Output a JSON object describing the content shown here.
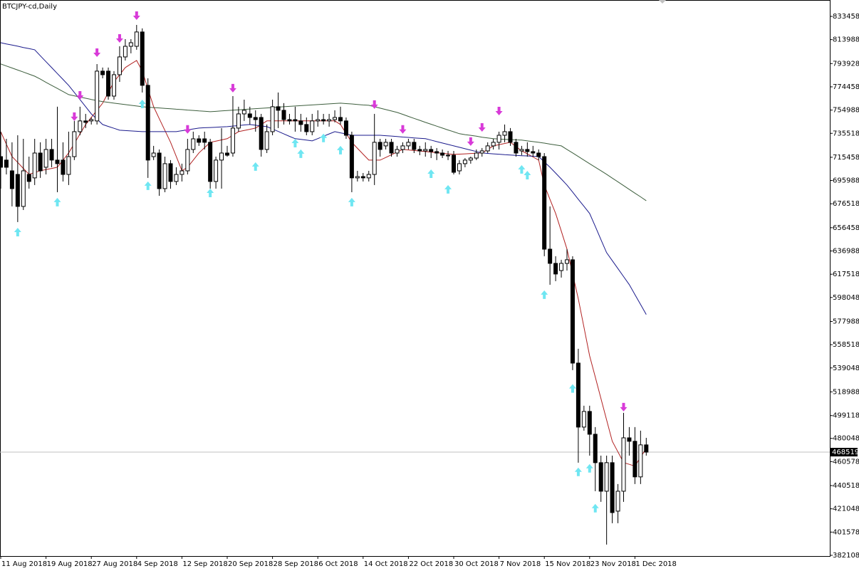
{
  "chart_data": {
    "type": "candlestick",
    "title": "BTCJPY-cd,Daily",
    "categories": [
      "11 Aug 2018",
      null,
      null,
      null,
      null,
      null,
      null,
      null,
      "19 Aug 2018",
      null,
      null,
      null,
      null,
      null,
      null,
      null,
      "27 Aug 2018",
      null,
      null,
      null,
      null,
      null,
      null,
      null,
      "4 Sep 2018",
      null,
      null,
      null,
      null,
      null,
      null,
      null,
      "12 Sep 2018",
      null,
      null,
      null,
      null,
      null,
      null,
      null,
      "20 Sep 2018",
      null,
      null,
      null,
      null,
      null,
      null,
      null,
      "28 Sep 2018",
      null,
      null,
      null,
      null,
      null,
      null,
      null,
      "6 Oct 2018",
      null,
      null,
      null,
      null,
      null,
      null,
      null,
      "14 Oct 2018",
      null,
      null,
      null,
      null,
      null,
      null,
      null,
      "22 Oct 2018",
      null,
      null,
      null,
      null,
      null,
      null,
      null,
      "30 Oct 2018",
      null,
      null,
      null,
      null,
      null,
      null,
      null,
      "7 Nov 2018",
      null,
      null,
      null,
      null,
      null,
      null,
      null,
      "15 Nov 2018",
      null,
      null,
      null,
      null,
      null,
      null,
      null,
      "23 Nov 2018",
      null,
      null,
      null,
      null,
      null,
      null,
      null,
      "1 Dec 2018",
      null,
      null
    ],
    "open": [
      716000,
      713100,
      704100,
      701100,
      674300,
      701100,
      698200,
      719000,
      707100,
      722000,
      713100,
      713100,
      701100,
      716000,
      736900,
      745900,
      745900,
      745900,
      787600,
      787600,
      766700,
      784600,
      799500,
      808400,
      808400,
      820400,
      775700,
      716000,
      719000,
      689200,
      710100,
      695200,
      701100,
      704100,
      722000,
      730900,
      730900,
      728000,
      695200,
      713100,
      719000,
      719000,
      739900,
      751800,
      751800,
      748800,
      748800,
      722000,
      736900,
      757800,
      754800,
      747000,
      747000,
      745900,
      742900,
      736900,
      745900,
      747000,
      745900,
      747000,
      748800,
      745900,
      733900,
      698200,
      699300,
      698200,
      701100,
      728000,
      725000,
      728000,
      719000,
      722000,
      725000,
      728000,
      722000,
      720800,
      722000,
      720200,
      719000,
      717200,
      717200,
      704100,
      710100,
      713100,
      714800,
      719000,
      720800,
      725000,
      728000,
      733900,
      736900,
      728000,
      720800,
      722000,
      720200,
      719000,
      716000,
      638500,
      626600,
      620600,
      626600,
      629600,
      543100,
      489500,
      502600,
      483500,
      459700,
      435800,
      459700,
      419100,
      435800,
      480500,
      477600,
      447800,
      474600
    ],
    "high": [
      736900,
      730900,
      728000,
      733900,
      730900,
      716000,
      730900,
      728000,
      730900,
      730900,
      757800,
      728000,
      736900,
      745900,
      757800,
      751800,
      748800,
      793500,
      790600,
      790600,
      787600,
      808400,
      814400,
      814400,
      826300,
      823400,
      781600,
      725000,
      722000,
      716000,
      713100,
      707100,
      710100,
      730900,
      736900,
      733900,
      736900,
      730900,
      716000,
      739900,
      725000,
      766700,
      757800,
      763700,
      757800,
      754800,
      751800,
      742900,
      763700,
      769700,
      760800,
      751800,
      757800,
      751800,
      748800,
      751800,
      754800,
      751800,
      751800,
      754800,
      757800,
      748800,
      736900,
      704100,
      702300,
      704100,
      751800,
      730900,
      730900,
      730900,
      725000,
      728000,
      730900,
      730900,
      725000,
      728000,
      725000,
      723200,
      722000,
      720800,
      720800,
      713100,
      714800,
      716000,
      722000,
      723200,
      728000,
      730900,
      736900,
      742900,
      739900,
      730900,
      725000,
      728000,
      725000,
      722000,
      719000,
      674300,
      632600,
      629600,
      638500,
      632600,
      555100,
      507400,
      507400,
      489500,
      465600,
      465600,
      465600,
      441800,
      501400,
      489500,
      489500,
      486500,
      480500
    ],
    "low": [
      689200,
      701100,
      674300,
      661200,
      671300,
      689200,
      692200,
      698200,
      701100,
      707100,
      686200,
      695200,
      692200,
      713100,
      733900,
      739900,
      742900,
      742900,
      781600,
      763700,
      763700,
      778600,
      796500,
      802500,
      805500,
      769700,
      698200,
      713100,
      683200,
      686200,
      689200,
      692200,
      695200,
      701100,
      719000,
      725000,
      722000,
      689200,
      689200,
      689200,
      716000,
      716000,
      736900,
      745900,
      742900,
      736900,
      716000,
      719000,
      733900,
      739900,
      742900,
      742900,
      736900,
      736900,
      733900,
      733900,
      741100,
      742900,
      741100,
      744700,
      742900,
      730900,
      686200,
      695200,
      695200,
      695200,
      692200,
      716000,
      722000,
      716000,
      716000,
      719000,
      722000,
      719000,
      717200,
      716000,
      714800,
      713100,
      714800,
      713100,
      701100,
      701100,
      707100,
      710100,
      713100,
      716000,
      719000,
      722000,
      722000,
      728000,
      725000,
      716000,
      717200,
      716000,
      716000,
      713100,
      632600,
      608700,
      611700,
      614700,
      620600,
      537200,
      459700,
      486500,
      465600,
      435800,
      426900,
      391100,
      409000,
      409000,
      426900,
      465600,
      441800,
      441800,
      465600
    ],
    "close": [
      707100,
      707100,
      689200,
      674300,
      704100,
      695200,
      719000,
      704100,
      722000,
      713100,
      710100,
      701100,
      716000,
      736900,
      745900,
      744700,
      747000,
      787600,
      784600,
      766700,
      784600,
      799500,
      808400,
      811400,
      820400,
      775700,
      713100,
      719000,
      689200,
      710100,
      695200,
      701100,
      704100,
      722000,
      730900,
      728000,
      728000,
      695200,
      713100,
      719000,
      717200,
      739900,
      751800,
      754800,
      748800,
      747000,
      722000,
      736900,
      757800,
      754800,
      747000,
      745900,
      745900,
      742900,
      736900,
      745900,
      747000,
      745900,
      747000,
      748800,
      745900,
      733900,
      698200,
      699300,
      698200,
      701100,
      728000,
      722000,
      728000,
      719000,
      722000,
      725000,
      728000,
      722000,
      720800,
      722000,
      720200,
      719000,
      717200,
      717200,
      702900,
      710100,
      713100,
      714800,
      719000,
      720800,
      725000,
      728000,
      733900,
      736900,
      728000,
      719000,
      722000,
      720200,
      719000,
      716000,
      638500,
      626600,
      617700,
      626600,
      629600,
      543100,
      489500,
      502600,
      483500,
      459700,
      435800,
      459700,
      417900,
      435800,
      480500,
      477600,
      447800,
      474600,
      468519
    ],
    "bull_color": "#ffffff",
    "bear_color": "#000000",
    "moving_averages": [
      {
        "color": "#b22222",
        "values": [
          736900,
          726500,
          716100,
          711100,
          706100,
          701200,
          702700,
          704200,
          705200,
          706100,
          707100,
          713100,
          719100,
          727000,
          735000,
          742900,
          748900,
          754800,
          760800,
          769700,
          778700,
          784600,
          790600,
          793600,
          796500,
          787600,
          772700,
          757800,
          747800,
          737900,
          728000,
          716100,
          704200,
          707100,
          713100,
          719100,
          723500,
          728000,
          729000,
          730000,
          731000,
          733900,
          736900,
          737900,
          738900,
          739900,
          742900,
          745900,
          745900,
          745900,
          745900,
          745900,
          745900,
          745900,
          745900,
          745900,
          745900,
          745900,
          745900,
          745900,
          742900,
          735500,
          728000,
          722900,
          718000,
          713100,
          713100,
          713100,
          715300,
          717600,
          719800,
          722000,
          721600,
          721100,
          720700,
          720200,
          719800,
          719300,
          718800,
          718300,
          717900,
          718100,
          718300,
          718600,
          718800,
          719100,
          722000,
          725000,
          726000,
          727000,
          728000,
          724400,
          720800,
          718300,
          715700,
          713100,
          692200,
          680300,
          668400,
          653500,
          638600,
          617700,
          596900,
          573000,
          549200,
          531300,
          513400,
          495600,
          477700,
          468700,
          459800,
          458300,
          456800,
          464300,
          471700
        ]
      },
      {
        "color": "#1a1a8c",
        "values": [
          811400,
          810400,
          809500,
          808500,
          807400,
          806500,
          805500,
          800500,
          795500,
          790600,
          785600,
          780600,
          775700,
          769700,
          763800,
          757800,
          751800,
          747400,
          742900,
          741300,
          739700,
          738100,
          737800,
          737500,
          737200,
          736900,
          736900,
          736900,
          736900,
          736900,
          736900,
          736900,
          737700,
          738400,
          739200,
          739900,
          740200,
          740400,
          740600,
          740900,
          741100,
          741600,
          742000,
          742500,
          742900,
          742300,
          741700,
          741100,
          739100,
          737100,
          735000,
          733000,
          731000,
          730400,
          729800,
          729200,
          731100,
          733100,
          735000,
          736900,
          735900,
          735000,
          733900,
          733900,
          733900,
          733900,
          733900,
          733900,
          733500,
          733200,
          732800,
          732400,
          732100,
          731700,
          731300,
          731000,
          729800,
          728600,
          727400,
          726200,
          725000,
          723800,
          722600,
          721400,
          720300,
          719100,
          718700,
          718300,
          718000,
          717600,
          717300,
          717000,
          716800,
          716600,
          716300,
          716100,
          711600,
          707100,
          702200,
          697200,
          692200,
          686300,
          680300,
          674400,
          668400,
          657500,
          646500,
          635600,
          628900,
          622200,
          615500,
          608800,
          600500,
          592100,
          583800
        ]
      },
      {
        "color": "#3d5e3d",
        "values": [
          793600,
          791900,
          790200,
          788500,
          786800,
          785100,
          783400,
          780900,
          778200,
          775700,
          773100,
          770500,
          767900,
          766900,
          765900,
          764900,
          763900,
          763000,
          762000,
          761400,
          760800,
          760200,
          759600,
          759000,
          758400,
          757800,
          757400,
          757100,
          756800,
          756400,
          756100,
          755700,
          755400,
          755000,
          754700,
          754300,
          754000,
          753600,
          753900,
          754300,
          754600,
          754900,
          755200,
          755500,
          755900,
          756200,
          756500,
          756800,
          757100,
          757500,
          757800,
          758100,
          758400,
          758700,
          759000,
          759300,
          759600,
          759900,
          760200,
          760500,
          760800,
          760400,
          760100,
          759700,
          759300,
          759000,
          757800,
          756600,
          755400,
          754200,
          753000,
          751400,
          749700,
          748000,
          746400,
          744700,
          743100,
          741500,
          739900,
          738300,
          736800,
          735200,
          734400,
          733800,
          733100,
          732300,
          731700,
          731000,
          730700,
          730500,
          730300,
          730000,
          729800,
          729200,
          728600,
          728000,
          727300,
          726500,
          725800,
          725000,
          722000,
          719100,
          716100,
          713100,
          710100,
          707100,
          704200,
          701200,
          698000,
          694900,
          691700,
          688500,
          685400,
          682300,
          679100
        ]
      }
    ],
    "up_arrows": {
      "color": "#6fe6f2",
      "values": [
        null,
        null,
        null,
        656400,
        null,
        null,
        null,
        null,
        null,
        null,
        681500,
        null,
        null,
        null,
        null,
        null,
        null,
        null,
        null,
        null,
        null,
        null,
        null,
        null,
        null,
        763700,
        695200,
        null,
        null,
        null,
        null,
        null,
        null,
        null,
        null,
        null,
        null,
        689200,
        null,
        null,
        null,
        null,
        null,
        null,
        null,
        711300,
        null,
        null,
        null,
        null,
        null,
        null,
        730900,
        722000,
        null,
        null,
        null,
        735200,
        null,
        null,
        725000,
        null,
        681500,
        null,
        null,
        null,
        null,
        null,
        null,
        null,
        null,
        null,
        null,
        null,
        null,
        null,
        705300,
        null,
        null,
        692200,
        null,
        null,
        null,
        null,
        null,
        null,
        null,
        null,
        null,
        null,
        null,
        null,
        708900,
        704100,
        null,
        null,
        604000,
        null,
        null,
        null,
        null,
        525400,
        455600,
        null,
        458600,
        425200,
        null,
        null,
        null,
        null,
        null,
        null,
        null,
        null,
        null
      ]
    },
    "down_arrows": {
      "color": "#d83ad8",
      "values": [
        null,
        null,
        null,
        null,
        null,
        null,
        null,
        null,
        null,
        null,
        null,
        null,
        null,
        745900,
        763700,
        null,
        null,
        799500,
        null,
        null,
        null,
        811400,
        null,
        null,
        830500,
        null,
        null,
        null,
        null,
        null,
        null,
        null,
        null,
        735200,
        null,
        null,
        null,
        null,
        null,
        null,
        null,
        769700,
        null,
        null,
        null,
        null,
        null,
        null,
        null,
        null,
        null,
        null,
        null,
        null,
        null,
        null,
        null,
        null,
        null,
        null,
        null,
        null,
        null,
        null,
        null,
        null,
        756000,
        null,
        null,
        null,
        null,
        735200,
        null,
        null,
        null,
        null,
        null,
        null,
        null,
        null,
        null,
        null,
        null,
        725000,
        null,
        736900,
        null,
        null,
        750600,
        null,
        null,
        null,
        null,
        null,
        null,
        null,
        null,
        null,
        null,
        null,
        null,
        null,
        null,
        null,
        null,
        null,
        null,
        null,
        null,
        null,
        502600,
        null,
        null,
        null,
        null
      ]
    },
    "last_price": 468519,
    "ylim": [
      381500,
      847170
    ],
    "yticks": [
      833458,
      813988,
      793928,
      774458,
      754988,
      735518,
      715458,
      695988,
      676518,
      656458,
      636988,
      617518,
      598048,
      577988,
      558518,
      539048,
      518988,
      499118,
      480048,
      460578,
      440518,
      421048,
      401578,
      382108
    ],
    "grid": false
  }
}
